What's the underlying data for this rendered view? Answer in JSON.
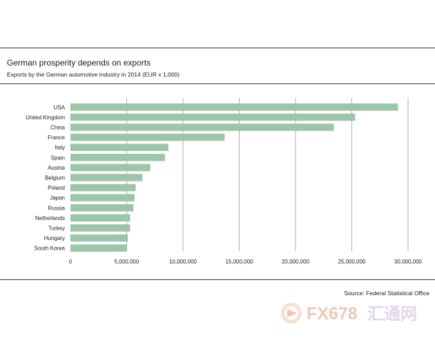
{
  "header": {
    "title": "German prosperity depends on exports",
    "subtitle": "Exports by the German automotive industry in 2014 (EUR x 1,000)"
  },
  "footer": {
    "source": "Source: Federal Statistical Office"
  },
  "watermark": {
    "text_latin": "FX678",
    "text_cjk": "汇通网"
  },
  "colors": {
    "bar": "#9dc5a9",
    "grid": "#999999",
    "text": "#1a1a1a"
  },
  "chart_data": {
    "type": "bar",
    "orientation": "horizontal",
    "title": "German prosperity depends on exports",
    "subtitle": "Exports by the German automotive industry in 2014 (EUR x 1,000)",
    "xlabel": "",
    "ylabel": "",
    "xlim": [
      0,
      31000000
    ],
    "xticks": [
      0,
      5000000,
      10000000,
      15000000,
      20000000,
      25000000,
      30000000
    ],
    "xtick_labels": [
      "0",
      "5,000,000",
      "10,000,000",
      "15,000,000",
      "20,000,000",
      "25,000,000",
      "30,000,000"
    ],
    "grid": "vertical",
    "categories": [
      "USA",
      "United Kingdom",
      "China",
      "France",
      "Italy",
      "Spain",
      "Austria",
      "Belgium",
      "Poland",
      "Japan",
      "Russia",
      "Netherlands",
      "Turkey",
      "Hungary",
      "South Korea"
    ],
    "values": [
      29100000,
      25300000,
      23400000,
      13700000,
      8700000,
      8400000,
      7100000,
      6400000,
      5800000,
      5700000,
      5600000,
      5300000,
      5300000,
      5100000,
      5000000
    ]
  }
}
